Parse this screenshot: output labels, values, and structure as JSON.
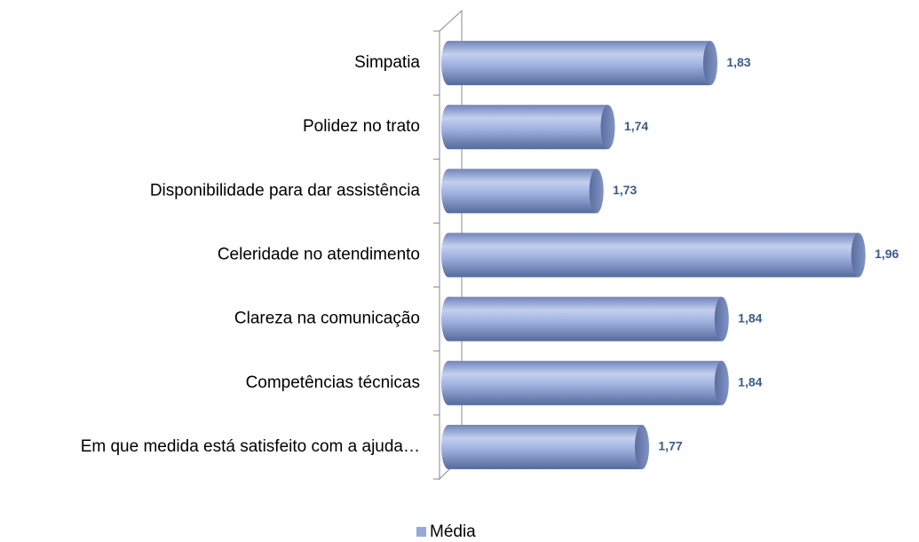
{
  "chart_data": {
    "type": "bar",
    "orientation": "horizontal",
    "categories": [
      "Simpatia",
      "Polidez no trato",
      "Disponibilidade para dar assistência",
      "Celeridade no atendimento",
      "Clareza na comunicação",
      "Competências técnicas",
      "Em que medida está satisfeito com a ajuda…"
    ],
    "series": [
      {
        "name": "Média",
        "color": "#95a8d8",
        "values": [
          1.83,
          1.74,
          1.73,
          1.96,
          1.84,
          1.84,
          1.77
        ],
        "value_labels": [
          "1,83",
          "1,74",
          "1,73",
          "1,96",
          "1,84",
          "1,84",
          "1,77"
        ]
      }
    ],
    "xlim": [
      1.6,
      2.0
    ],
    "label_color": "#3b5b8c"
  }
}
